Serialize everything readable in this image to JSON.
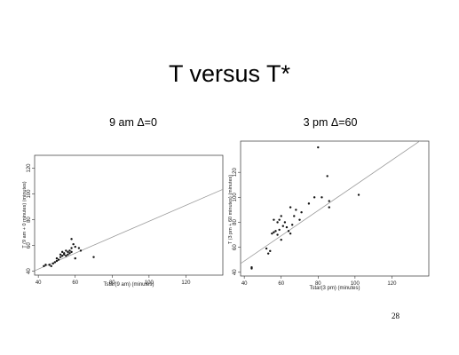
{
  "slide": {
    "title": "T versus T*",
    "page_number": "28"
  },
  "chart_data": [
    {
      "type": "scatter",
      "heading": "9 am Δ=0",
      "xlabel": "Tstar(9 am) (minutes)",
      "ylabel": "T (9 am + 0 minutes) (minutes)",
      "xlim": [
        38,
        140
      ],
      "ylim": [
        37,
        130
      ],
      "xticks": [
        40,
        60,
        80,
        100,
        120
      ],
      "yticks": [
        40,
        60,
        80,
        100,
        120
      ],
      "points": [
        [
          43,
          44
        ],
        [
          44,
          45
        ],
        [
          46,
          45
        ],
        [
          47,
          44
        ],
        [
          48,
          46
        ],
        [
          49,
          47
        ],
        [
          50,
          48
        ],
        [
          50,
          50
        ],
        [
          51,
          49
        ],
        [
          52,
          51
        ],
        [
          52,
          53
        ],
        [
          53,
          52
        ],
        [
          53,
          55
        ],
        [
          54,
          53
        ],
        [
          54,
          54
        ],
        [
          55,
          52
        ],
        [
          55,
          56
        ],
        [
          56,
          53
        ],
        [
          56,
          55
        ],
        [
          57,
          54
        ],
        [
          57,
          56
        ],
        [
          58,
          55
        ],
        [
          58,
          58
        ],
        [
          58,
          65
        ],
        [
          59,
          61
        ],
        [
          60,
          59
        ],
        [
          60,
          50
        ],
        [
          62,
          58
        ],
        [
          63,
          56
        ],
        [
          70,
          51
        ]
      ],
      "fit_line": {
        "x": [
          38,
          140
        ],
        "y": [
          40.4,
          103.6
        ]
      }
    },
    {
      "type": "scatter",
      "heading": "3 pm Δ=60",
      "xlabel": "Tstar(3 pm) (minutes)",
      "ylabel": "T (3 pm + 60 minutes) (minutes)",
      "xlim": [
        38,
        140
      ],
      "ylim": [
        37,
        145
      ],
      "xticks": [
        40,
        60,
        80,
        100,
        120
      ],
      "yticks": [
        40,
        60,
        80,
        100,
        120
      ],
      "points": [
        [
          44,
          43
        ],
        [
          44,
          44
        ],
        [
          52,
          59
        ],
        [
          53,
          55
        ],
        [
          54,
          57
        ],
        [
          55,
          71
        ],
        [
          56,
          72
        ],
        [
          56,
          82
        ],
        [
          57,
          73
        ],
        [
          58,
          70
        ],
        [
          58,
          80
        ],
        [
          59,
          74
        ],
        [
          59,
          82
        ],
        [
          60,
          66
        ],
        [
          60,
          85
        ],
        [
          61,
          77
        ],
        [
          62,
          80
        ],
        [
          63,
          76
        ],
        [
          64,
          73
        ],
        [
          65,
          71
        ],
        [
          65,
          92
        ],
        [
          66,
          78
        ],
        [
          67,
          85
        ],
        [
          68,
          90
        ],
        [
          70,
          82
        ],
        [
          71,
          88
        ],
        [
          75,
          95
        ],
        [
          78,
          100
        ],
        [
          80,
          140
        ],
        [
          82,
          100
        ],
        [
          85,
          117
        ],
        [
          86,
          97
        ],
        [
          86,
          92
        ],
        [
          102,
          102
        ]
      ],
      "fit_line": {
        "x": [
          38,
          140
        ],
        "y": [
          47,
          150
        ]
      }
    }
  ]
}
